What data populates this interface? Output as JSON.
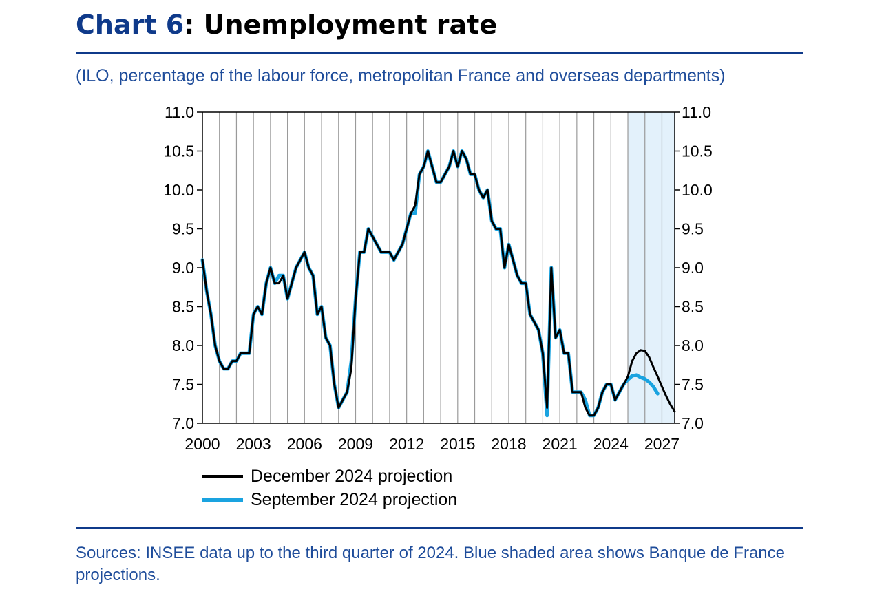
{
  "header": {
    "title_prefix": "Chart 6",
    "title_main": ": Unemployment rate",
    "subtitle": "(ILO, percentage of the labour force, metropolitan France and overseas departments)"
  },
  "footer": {
    "source": "Sources: INSEE data up to the third quarter of 2024. Blue shaded area shows Banque de France projections."
  },
  "colors": {
    "december": "#000000",
    "september": "#1aa3e0",
    "shade": "#e3f1fb",
    "grid": "#9a9a9a"
  },
  "chart_data": {
    "type": "line",
    "xlim": [
      2000,
      2027.75
    ],
    "ylim": [
      7.0,
      11.0
    ],
    "x_ticks": [
      2000,
      2003,
      2006,
      2009,
      2012,
      2015,
      2018,
      2021,
      2024,
      2027
    ],
    "x_tick_labels": [
      "2000",
      "2003",
      "2006",
      "2009",
      "2012",
      "2015",
      "2018",
      "2021",
      "2024",
      "2027"
    ],
    "y_ticks": [
      7.0,
      7.5,
      8.0,
      8.5,
      9.0,
      9.5,
      10.0,
      10.5,
      11.0
    ],
    "y_tick_labels": [
      "7.0",
      "7.5",
      "8.0",
      "8.5",
      "9.0",
      "9.5",
      "10.0",
      "10.5",
      "11.0"
    ],
    "grid": "vertical",
    "right_axis": true,
    "projection_shade": [
      2025,
      2027.75
    ],
    "legend": {
      "position": "bottom-left"
    },
    "series": [
      {
        "name": "September 2024 projection",
        "color": "#1aa3e0",
        "x": [
          2000.0,
          2000.25,
          2000.5,
          2000.75,
          2001.0,
          2001.25,
          2001.5,
          2001.75,
          2002.0,
          2002.25,
          2002.5,
          2002.75,
          2003.0,
          2003.25,
          2003.5,
          2003.75,
          2004.0,
          2004.25,
          2004.5,
          2004.75,
          2005.0,
          2005.25,
          2005.5,
          2005.75,
          2006.0,
          2006.25,
          2006.5,
          2006.75,
          2007.0,
          2007.25,
          2007.5,
          2007.75,
          2008.0,
          2008.25,
          2008.5,
          2008.75,
          2009.0,
          2009.25,
          2009.5,
          2009.75,
          2010.0,
          2010.25,
          2010.5,
          2010.75,
          2011.0,
          2011.25,
          2011.5,
          2011.75,
          2012.0,
          2012.25,
          2012.5,
          2012.75,
          2013.0,
          2013.25,
          2013.5,
          2013.75,
          2014.0,
          2014.25,
          2014.5,
          2014.75,
          2015.0,
          2015.25,
          2015.5,
          2015.75,
          2016.0,
          2016.25,
          2016.5,
          2016.75,
          2017.0,
          2017.25,
          2017.5,
          2017.75,
          2018.0,
          2018.25,
          2018.5,
          2018.75,
          2019.0,
          2019.25,
          2019.5,
          2019.75,
          2020.0,
          2020.25,
          2020.5,
          2020.75,
          2021.0,
          2021.25,
          2021.5,
          2021.75,
          2022.0,
          2022.25,
          2022.5,
          2022.75,
          2023.0,
          2023.25,
          2023.5,
          2023.75,
          2024.0,
          2024.25,
          2024.5,
          2024.75,
          2025.0,
          2025.25,
          2025.5,
          2025.75,
          2026.0,
          2026.25,
          2026.5,
          2026.75
        ],
        "values": [
          9.1,
          8.7,
          8.4,
          8.0,
          7.8,
          7.7,
          7.7,
          7.8,
          7.8,
          7.9,
          7.9,
          7.9,
          8.4,
          8.5,
          8.4,
          8.8,
          9.0,
          8.8,
          8.9,
          8.9,
          8.6,
          8.8,
          9.0,
          9.1,
          9.2,
          9.0,
          8.9,
          8.4,
          8.5,
          8.1,
          8.0,
          7.5,
          7.2,
          7.3,
          7.4,
          7.8,
          8.6,
          9.2,
          9.2,
          9.5,
          9.4,
          9.3,
          9.2,
          9.2,
          9.2,
          9.1,
          9.2,
          9.3,
          9.5,
          9.7,
          9.7,
          10.2,
          10.3,
          10.5,
          10.3,
          10.1,
          10.1,
          10.2,
          10.3,
          10.5,
          10.3,
          10.5,
          10.4,
          10.2,
          10.2,
          10.0,
          9.9,
          10.0,
          9.6,
          9.5,
          9.5,
          9.0,
          9.3,
          9.1,
          8.9,
          8.8,
          8.8,
          8.4,
          8.3,
          8.2,
          7.9,
          7.1,
          9.0,
          8.1,
          8.2,
          7.9,
          7.9,
          7.4,
          7.4,
          7.4,
          7.3,
          7.1,
          7.1,
          7.2,
          7.4,
          7.5,
          7.5,
          7.3,
          7.4,
          7.5,
          7.56,
          7.61,
          7.62,
          7.59,
          7.57,
          7.53,
          7.47,
          7.38
        ]
      },
      {
        "name": "December 2024 projection",
        "color": "#000000",
        "x": [
          2000.0,
          2000.25,
          2000.5,
          2000.75,
          2001.0,
          2001.25,
          2001.5,
          2001.75,
          2002.0,
          2002.25,
          2002.5,
          2002.75,
          2003.0,
          2003.25,
          2003.5,
          2003.75,
          2004.0,
          2004.25,
          2004.5,
          2004.75,
          2005.0,
          2005.25,
          2005.5,
          2005.75,
          2006.0,
          2006.25,
          2006.5,
          2006.75,
          2007.0,
          2007.25,
          2007.5,
          2007.75,
          2008.0,
          2008.25,
          2008.5,
          2008.75,
          2009.0,
          2009.25,
          2009.5,
          2009.75,
          2010.0,
          2010.25,
          2010.5,
          2010.75,
          2011.0,
          2011.25,
          2011.5,
          2011.75,
          2012.0,
          2012.25,
          2012.5,
          2012.75,
          2013.0,
          2013.25,
          2013.5,
          2013.75,
          2014.0,
          2014.25,
          2014.5,
          2014.75,
          2015.0,
          2015.25,
          2015.5,
          2015.75,
          2016.0,
          2016.25,
          2016.5,
          2016.75,
          2017.0,
          2017.25,
          2017.5,
          2017.75,
          2018.0,
          2018.25,
          2018.5,
          2018.75,
          2019.0,
          2019.25,
          2019.5,
          2019.75,
          2020.0,
          2020.25,
          2020.5,
          2020.75,
          2021.0,
          2021.25,
          2021.5,
          2021.75,
          2022.0,
          2022.25,
          2022.5,
          2022.75,
          2023.0,
          2023.25,
          2023.5,
          2023.75,
          2024.0,
          2024.25,
          2024.5,
          2024.75,
          2025.0,
          2025.25,
          2025.5,
          2025.75,
          2026.0,
          2026.25,
          2026.5,
          2026.75,
          2027.0,
          2027.25,
          2027.5,
          2027.75
        ],
        "values": [
          9.1,
          8.7,
          8.4,
          8.0,
          7.8,
          7.7,
          7.7,
          7.8,
          7.8,
          7.9,
          7.9,
          7.9,
          8.4,
          8.5,
          8.4,
          8.8,
          9.0,
          8.8,
          8.8,
          8.9,
          8.6,
          8.8,
          9.0,
          9.1,
          9.2,
          9.0,
          8.9,
          8.4,
          8.5,
          8.1,
          8.0,
          7.5,
          7.2,
          7.3,
          7.4,
          7.7,
          8.6,
          9.2,
          9.2,
          9.5,
          9.4,
          9.3,
          9.2,
          9.2,
          9.2,
          9.1,
          9.2,
          9.3,
          9.5,
          9.7,
          9.8,
          10.2,
          10.3,
          10.5,
          10.3,
          10.1,
          10.1,
          10.2,
          10.3,
          10.5,
          10.3,
          10.5,
          10.4,
          10.2,
          10.2,
          10.0,
          9.9,
          10.0,
          9.6,
          9.5,
          9.5,
          9.0,
          9.3,
          9.1,
          8.9,
          8.8,
          8.8,
          8.4,
          8.3,
          8.2,
          7.9,
          7.2,
          9.0,
          8.1,
          8.2,
          7.9,
          7.9,
          7.4,
          7.4,
          7.4,
          7.2,
          7.1,
          7.1,
          7.2,
          7.4,
          7.5,
          7.5,
          7.3,
          7.4,
          7.5,
          7.6,
          7.8,
          7.9,
          7.94,
          7.93,
          7.85,
          7.72,
          7.6,
          7.47,
          7.35,
          7.24,
          7.15
        ]
      }
    ]
  }
}
